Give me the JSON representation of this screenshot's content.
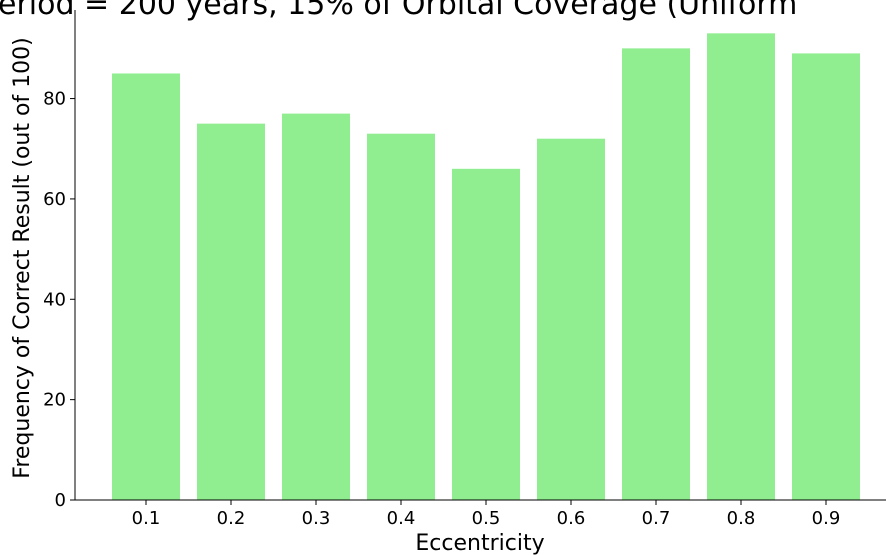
{
  "chart_data": {
    "type": "bar",
    "title": "eriod = 200 years, 15% of Orbital Coverage (Uniform",
    "xlabel": "Eccentricity",
    "ylabel": "Frequency of Correct Result (out of 100)",
    "categories": [
      "0.1",
      "0.2",
      "0.3",
      "0.4",
      "0.5",
      "0.6",
      "0.7",
      "0.8",
      "0.9"
    ],
    "values": [
      85,
      75,
      77,
      73,
      66,
      72,
      90,
      93,
      89
    ],
    "color": "#90ee90",
    "ylim": [
      0,
      97.65
    ],
    "yticks": [
      0,
      20,
      40,
      60,
      80
    ],
    "grid": false
  }
}
